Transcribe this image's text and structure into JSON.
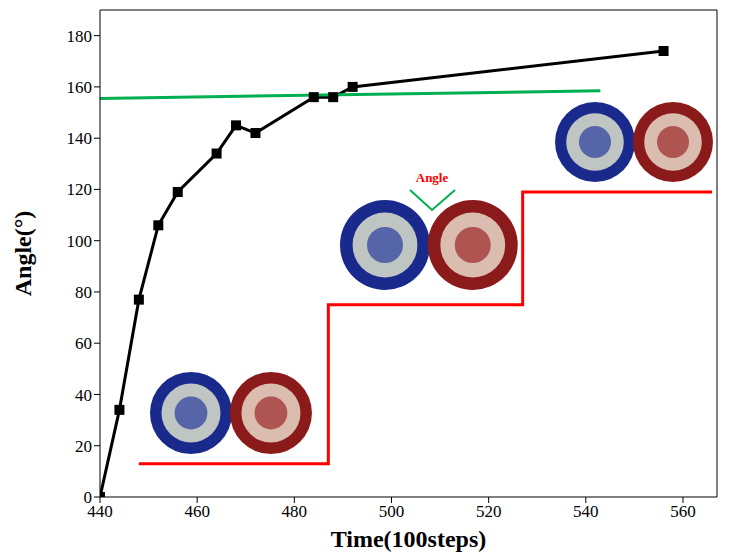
{
  "chart_data": {
    "type": "line",
    "x_label": "Time(100steps)",
    "y_label": "Angle(°)",
    "xlim": [
      440,
      567
    ],
    "xticks": [
      440,
      460,
      480,
      500,
      520,
      540,
      560
    ],
    "ylim": [
      0,
      190
    ],
    "yticks": [
      0,
      20,
      40,
      60,
      80,
      100,
      120,
      140,
      160,
      180
    ],
    "grid": false,
    "annotations": [
      {
        "text": "Angle"
      }
    ],
    "series": [
      {
        "color": "#000000",
        "marker": "square",
        "line_style": "solid",
        "x": [
          440,
          444,
          448,
          452,
          456,
          464,
          468,
          472,
          484,
          488,
          492,
          556
        ],
        "values": [
          0,
          34,
          77,
          106,
          119,
          134,
          145,
          142,
          156,
          156,
          160,
          174
        ]
      },
      {
        "color": "#00b050",
        "marker": "none",
        "line_style": "solid",
        "x": [
          440,
          543
        ],
        "values": [
          155.5,
          158.5
        ]
      },
      {
        "color": "#ff0000",
        "marker": "none",
        "line_style": "solid",
        "x": [
          448,
          487,
          487,
          527,
          527,
          566
        ],
        "values": [
          13,
          13,
          75,
          75,
          119,
          119
        ]
      }
    ]
  }
}
